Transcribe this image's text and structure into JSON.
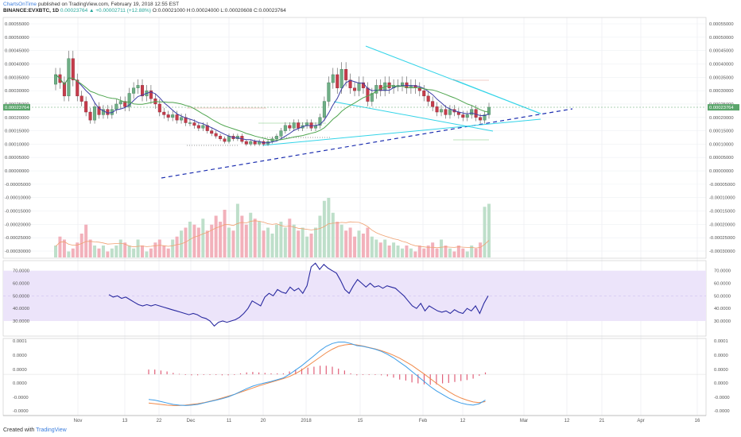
{
  "header": {
    "brand": "ChartsOnTime",
    "published": "published on TradingView.com, February 19, 2018 12:55 EST",
    "symbol": "BINANCE:EVXBTC, 1D",
    "change": "0.00023764 ▲ +0.00002711 (+12.88%)",
    "ohlc": "O:0.00021000 H:0.00024000 L:0.00020608 C:0.00023764"
  },
  "footer": {
    "created_with": "Created with",
    "tradingview": "TradingView"
  },
  "colors": {
    "up": "#6fae86",
    "down": "#c63c4b",
    "ma_fast": "#3d3fa6",
    "ma_slow": "#4fa54f",
    "trendline": "#1d2fb0",
    "wedge": "#33d4e8",
    "rsi_line": "#2a2aa0",
    "rsi_band": "#ece4fa",
    "macd_line": "#3d9de8",
    "signal_line": "#f08a4b",
    "hist": "#e0607a",
    "last_price_badge": "#5aa56b"
  },
  "x_axis_labels": [
    "Nov",
    "13",
    "22",
    "Dec",
    "11",
    "20",
    "2018",
    "15",
    "Feb",
    "12",
    "Mar",
    "12",
    "21",
    "Apr",
    "16"
  ],
  "chart_data": [
    {
      "type": "candlestick",
      "title": "",
      "y_ticks": [
        "0.00055000",
        "0.00050000",
        "0.00045000",
        "0.00040000",
        "0.00035000",
        "0.00030000",
        "0.00025000",
        "0.00020000",
        "0.00015000",
        "0.00010000",
        "0.00005000",
        "0.00000000",
        "-0.00005000",
        "-0.00010000",
        "-0.00015000",
        "-0.00020000",
        "-0.00025000",
        "-0.00030000"
      ],
      "ylim": [
        -0.00031,
        0.00056
      ],
      "last_price_label": "0.00023764",
      "candles_close": [
        0.00036,
        0.00033,
        0.00028,
        0.00042,
        0.00034,
        0.00028,
        0.00026,
        0.00022,
        0.00019,
        0.00024,
        0.00021,
        0.00023,
        0.00021,
        0.00023,
        0.00025,
        0.00026,
        0.00024,
        0.00029,
        0.00031,
        0.00032,
        0.00028,
        0.0003,
        0.00027,
        0.00025,
        0.00022,
        0.00021,
        0.0002,
        0.00021,
        0.00019,
        0.0002,
        0.00018,
        0.00018,
        0.00017,
        0.00016,
        0.00017,
        0.00015,
        0.00014,
        0.00013,
        0.00012,
        0.00011,
        0.00013,
        0.00012,
        0.00013,
        0.00011,
        0.0001,
        0.00011,
        0.0001,
        0.00011,
        0.0001,
        0.00011,
        0.00012,
        0.00013,
        0.00015,
        0.00017,
        0.00016,
        0.00018,
        0.00016,
        0.00017,
        0.00018,
        0.00016,
        0.00017,
        0.0002,
        0.00026,
        0.00033,
        0.00036,
        0.00031,
        0.00038,
        0.00034,
        0.00031,
        0.0003,
        0.00033,
        0.00031,
        0.00026,
        0.00029,
        0.00032,
        0.0003,
        0.00033,
        0.00031,
        0.00032,
        0.00032,
        0.00033,
        0.00031,
        0.00032,
        0.00031,
        0.0003,
        0.00028,
        0.00026,
        0.00024,
        0.00022,
        0.00023,
        0.00021,
        0.00023,
        0.00022,
        0.00021,
        0.0002,
        0.00021,
        0.00023,
        0.0002,
        0.00019,
        0.00021,
        0.000238
      ],
      "volume_rel": [
        0.2,
        0.35,
        0.3,
        0.1,
        0.15,
        0.25,
        0.4,
        0.55,
        0.3,
        0.2,
        0.15,
        0.2,
        0.1,
        0.15,
        0.2,
        0.3,
        0.25,
        0.2,
        0.15,
        0.3,
        0.2,
        0.1,
        0.15,
        0.25,
        0.3,
        0.2,
        0.15,
        0.3,
        0.35,
        0.45,
        0.5,
        0.6,
        0.55,
        0.5,
        0.65,
        0.45,
        0.55,
        0.7,
        0.6,
        0.8,
        0.5,
        0.45,
        0.9,
        0.7,
        0.55,
        0.75,
        0.65,
        0.6,
        0.45,
        0.5,
        0.4,
        0.55,
        0.6,
        0.5,
        0.65,
        0.55,
        0.45,
        0.5,
        0.35,
        0.4,
        0.5,
        0.7,
        0.95,
        1.0,
        0.75,
        0.6,
        0.55,
        0.45,
        0.5,
        0.35,
        0.45,
        0.4,
        0.5,
        0.35,
        0.3,
        0.25,
        0.3,
        0.2,
        0.25,
        0.2,
        0.15,
        0.2,
        0.15,
        0.1,
        0.2,
        0.15,
        0.2,
        0.25,
        0.15,
        0.3,
        0.2,
        0.15,
        0.1,
        0.2,
        0.15,
        0.1,
        0.2,
        0.15,
        0.25,
        0.85,
        0.9
      ]
    },
    {
      "type": "line",
      "title": "",
      "y_ticks": [
        "70.0000",
        "60.0000",
        "50.0000",
        "40.0000",
        "30.0000"
      ],
      "ylim": [
        18,
        78
      ],
      "band": [
        30,
        70
      ],
      "values": [
        51,
        49,
        50,
        48,
        49,
        47,
        45,
        43,
        42,
        43,
        42,
        43,
        42,
        41,
        40,
        39,
        38,
        37,
        36,
        35,
        36,
        35,
        33,
        32,
        30,
        26,
        29,
        30,
        29,
        30,
        31,
        33,
        36,
        40,
        46,
        44,
        42,
        49,
        52,
        50,
        55,
        53,
        52,
        57,
        54,
        56,
        52,
        58,
        73,
        76,
        71,
        75,
        72,
        70,
        68,
        62,
        55,
        52,
        58,
        63,
        60,
        57,
        60,
        57,
        58,
        56,
        58,
        57,
        56,
        53,
        50,
        46,
        42,
        40,
        44,
        38,
        42,
        40,
        38,
        37,
        38,
        36,
        39,
        37,
        36,
        40,
        38,
        42,
        36,
        44,
        50
      ]
    },
    {
      "type": "line",
      "title": "",
      "y_ticks": [
        "0.0001",
        "0.0000",
        "0.0000",
        "0.0000",
        "-0.0000",
        "-0.0000"
      ],
      "ylim": [
        -1.15,
        1.0
      ],
      "macd": [
        -0.7,
        -0.72,
        -0.76,
        -0.8,
        -0.84,
        -0.86,
        -0.87,
        -0.86,
        -0.84,
        -0.8,
        -0.76,
        -0.72,
        -0.68,
        -0.63,
        -0.56,
        -0.48,
        -0.4,
        -0.33,
        -0.28,
        -0.24,
        -0.2,
        -0.15,
        -0.1,
        0.0,
        0.12,
        0.24,
        0.38,
        0.52,
        0.66,
        0.78,
        0.86,
        0.9,
        0.9,
        0.86,
        0.8,
        0.78,
        0.74,
        0.7,
        0.64,
        0.56,
        0.46,
        0.34,
        0.22,
        0.08,
        -0.06,
        -0.2,
        -0.34,
        -0.46,
        -0.56,
        -0.66,
        -0.74,
        -0.8,
        -0.84,
        -0.86,
        -0.82,
        -0.72
      ],
      "signal": [
        -0.8,
        -0.82,
        -0.84,
        -0.86,
        -0.87,
        -0.87,
        -0.86,
        -0.84,
        -0.82,
        -0.79,
        -0.75,
        -0.71,
        -0.66,
        -0.61,
        -0.56,
        -0.5,
        -0.44,
        -0.38,
        -0.32,
        -0.27,
        -0.22,
        -0.17,
        -0.12,
        -0.06,
        0.02,
        0.12,
        0.24,
        0.36,
        0.48,
        0.6,
        0.7,
        0.78,
        0.82,
        0.84,
        0.82,
        0.79,
        0.75,
        0.71,
        0.66,
        0.6,
        0.53,
        0.45,
        0.35,
        0.25,
        0.13,
        0.01,
        -0.12,
        -0.25,
        -0.37,
        -0.48,
        -0.58,
        -0.66,
        -0.72,
        -0.77,
        -0.79,
        -0.76
      ]
    }
  ]
}
